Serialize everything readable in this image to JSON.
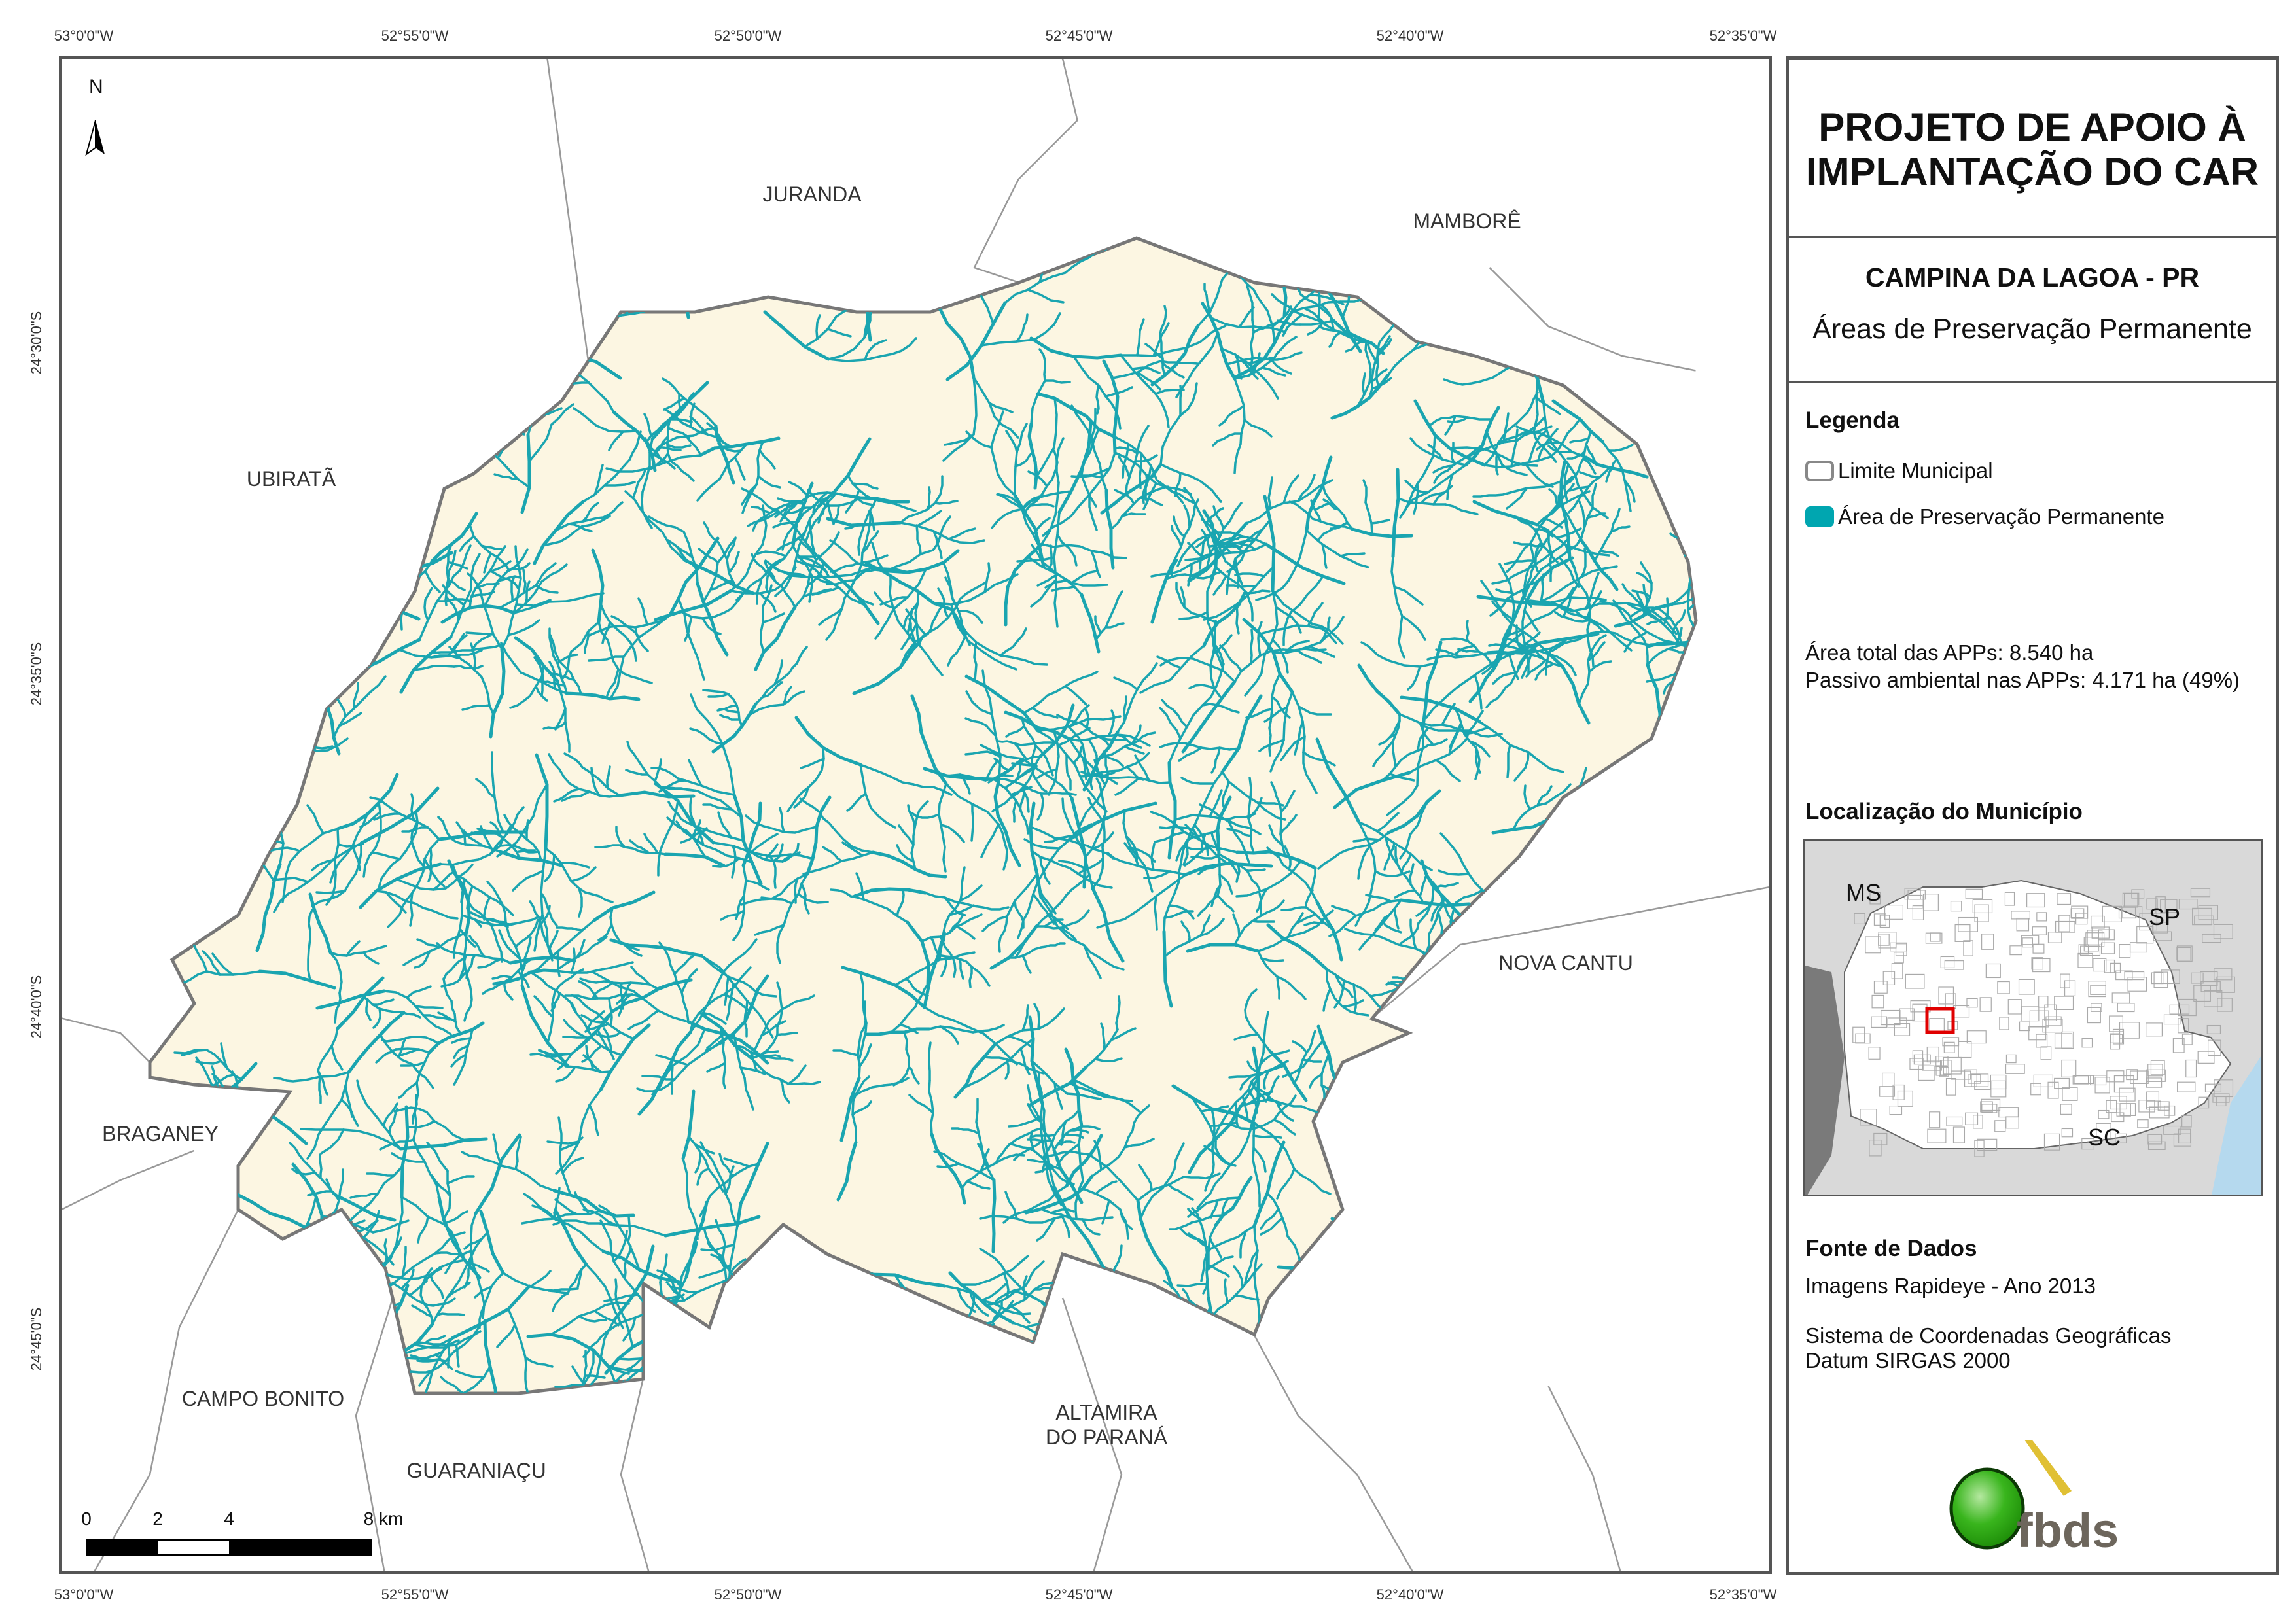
{
  "colors": {
    "municipality_fill": "#fcf6e2",
    "municipality_border": "#777777",
    "app_stream": "#1aa5b0",
    "frame": "#555555",
    "neighbor_border": "#999999",
    "inset_bg": "#d9d9d9",
    "inset_ms": "#7a7a7a",
    "inset_sea": "#b5d9ee",
    "inset_highlight": "#e00000"
  },
  "map": {
    "north_label": "N",
    "top_coords": [
      "53°0'0\"W",
      "52°55'0\"W",
      "52°50'0\"W",
      "52°45'0\"W",
      "52°40'0\"W",
      "52°35'0\"W"
    ],
    "bottom_coords": [
      "53°0'0\"W",
      "52°55'0\"W",
      "52°50'0\"W",
      "52°45'0\"W",
      "52°40'0\"W",
      "52°35'0\"W"
    ],
    "left_coords": [
      "24°30'0\"S",
      "24°35'0\"S",
      "24°40'0\"S",
      "24°45'0\"S"
    ],
    "places": {
      "juranda": "JURANDA",
      "mambore": "MAMBORÊ",
      "ubirata": "UBIRATÃ",
      "nova_cantu": "NOVA CANTU",
      "braganey": "BRAGANEY",
      "campo_bonito": "CAMPO BONITO",
      "guaraniacu": "GUARANIAÇU",
      "altamira_1": "ALTAMIRA",
      "altamira_2": "DO PARANÁ"
    },
    "scale": {
      "labels": [
        "0",
        "2",
        "4",
        "8 km"
      ]
    }
  },
  "panel": {
    "title_line1": "PROJETO DE APOIO À",
    "title_line2": "IMPLANTAÇÃO DO CAR",
    "municipality": "CAMPINA DA LAGOA - PR",
    "theme": "Áreas de Preservação Permanente",
    "legend_title": "Legenda",
    "legend_items": [
      {
        "label": "Limite Municipal",
        "icon": "outline-swatch"
      },
      {
        "label": "Área de Preservação Permanente",
        "icon": "teal-swatch"
      }
    ],
    "area_total": "Área total das APPs: 8.540 ha",
    "passivo": "Passivo ambiental nas APPs: 4.171 ha (49%)",
    "location_title": "Localização do Município",
    "inset_labels": {
      "ms": "MS",
      "sp": "SP",
      "sc": "SC"
    },
    "source_title": "Fonte de Dados",
    "source_1": "Imagens Rapideye - Ano 2013",
    "source_2": "Sistema de Coordenadas Geográficas",
    "source_3": "Datum SIRGAS 2000",
    "logo_text": "fbds"
  }
}
